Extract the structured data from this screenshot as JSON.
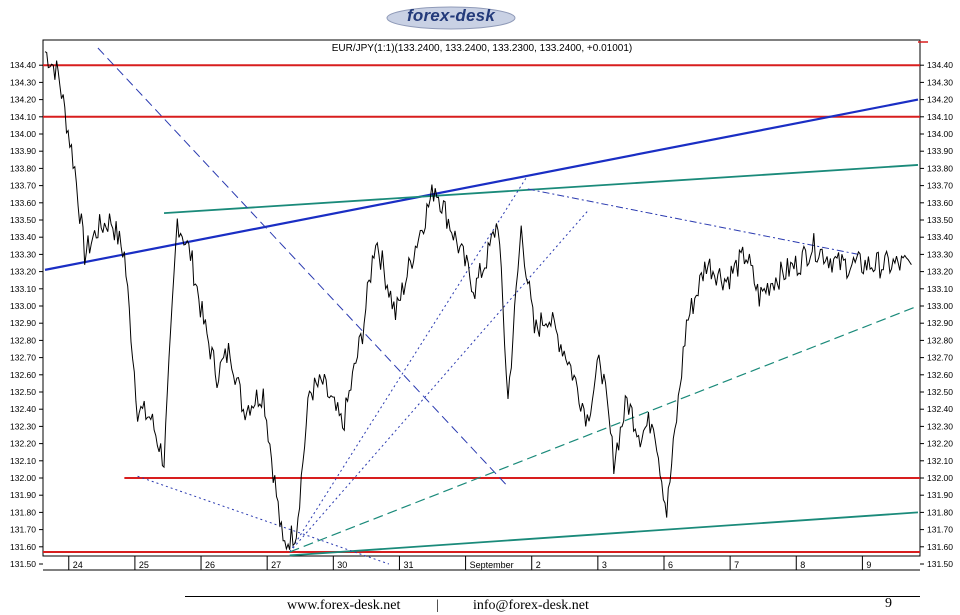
{
  "logo": {
    "text": "forex-desk"
  },
  "footer": {
    "website": "www.forex-desk.net",
    "separator": "|",
    "email": "info@forex-desk.net",
    "page_number": "9"
  },
  "chart_data": {
    "type": "line",
    "title": "EUR/JPY(1:1)(133.2400, 133.2400, 133.2300, 133.2400, +0.01001)",
    "ylim": [
      131.5,
      134.5
    ],
    "y_ticks": [
      134.4,
      134.3,
      134.2,
      134.1,
      134.0,
      133.9,
      133.8,
      133.7,
      133.6,
      133.5,
      133.4,
      133.3,
      133.2,
      133.1,
      133.0,
      132.9,
      132.8,
      132.7,
      132.6,
      132.5,
      132.4,
      132.3,
      132.2,
      132.1,
      132.0,
      131.9,
      131.8,
      131.7,
      131.6,
      131.5
    ],
    "x_tick_labels": [
      "24",
      "25",
      "26",
      "27",
      "30",
      "31",
      "September",
      "2",
      "3",
      "6",
      "7",
      "8",
      "9"
    ],
    "series": [
      {
        "color": "#000000",
        "x": [
          0,
          0.2,
          0.45,
          0.6,
          0.8,
          1.0,
          1.2,
          1.4,
          1.6,
          1.8,
          2.0,
          2.2,
          2.4,
          2.6,
          2.8,
          3.0,
          3.3,
          3.6,
          3.8,
          4.0,
          4.2,
          4.5,
          4.8,
          5.0,
          5.3,
          5.6,
          5.9,
          6.2,
          6.5,
          6.7,
          6.85,
          7.0,
          7.2,
          7.4,
          7.6,
          7.9,
          8.2,
          8.4,
          8.6,
          8.8,
          9.0,
          9.2,
          9.4,
          9.7,
          10.0,
          10.3,
          10.6,
          10.8,
          11.0,
          11.2,
          11.4,
          11.6,
          11.8,
          12.0,
          12.2,
          12.5,
          12.8,
          13.1
        ],
        "y": [
          134.48,
          134.35,
          133.8,
          133.3,
          133.45,
          133.5,
          133.3,
          132.4,
          132.35,
          132.1,
          133.5,
          133.3,
          132.9,
          132.6,
          132.75,
          132.4,
          132.5,
          131.6,
          131.7,
          132.5,
          132.55,
          132.3,
          132.85,
          133.4,
          132.95,
          133.35,
          133.7,
          133.4,
          133.1,
          133.3,
          133.5,
          132.45,
          133.45,
          132.85,
          132.95,
          132.7,
          132.35,
          132.7,
          132.1,
          132.45,
          132.25,
          132.35,
          131.8,
          132.9,
          133.25,
          133.15,
          133.3,
          133.05,
          133.15,
          133.2,
          133.25,
          133.35,
          133.3,
          133.24,
          133.24,
          133.24,
          133.24,
          133.24
        ]
      }
    ],
    "support_resistance_levels": [
      134.4,
      134.1,
      132.0,
      131.57
    ],
    "trendlines": [
      {
        "style": "solid-blue",
        "from": [
          0,
          133.21
        ],
        "to": [
          13.2,
          134.2
        ]
      },
      {
        "style": "solid-teal",
        "from": [
          1.8,
          133.54
        ],
        "to": [
          13.2,
          133.82
        ]
      },
      {
        "style": "solid-teal",
        "from": [
          3.7,
          131.55
        ],
        "to": [
          13.2,
          131.8
        ]
      },
      {
        "style": "dashed-blue",
        "from": [
          0.8,
          134.5
        ],
        "to": [
          7.0,
          131.95
        ]
      },
      {
        "style": "dash-dot-blue",
        "from": [
          7.3,
          133.68
        ],
        "to": [
          12.3,
          133.3
        ]
      },
      {
        "style": "dotted-blue",
        "from": [
          1.4,
          132.01
        ],
        "to": [
          5.2,
          131.5
        ]
      },
      {
        "style": "dotted-blue",
        "from": [
          3.7,
          131.57
        ],
        "to": [
          7.3,
          133.76
        ]
      },
      {
        "style": "dotted-blue",
        "from": [
          3.7,
          131.57
        ],
        "to": [
          8.2,
          133.55
        ]
      },
      {
        "style": "dashed-teal",
        "from": [
          3.7,
          131.57
        ],
        "to": [
          13.2,
          133.0
        ]
      }
    ],
    "grid": false,
    "legend": "none"
  }
}
